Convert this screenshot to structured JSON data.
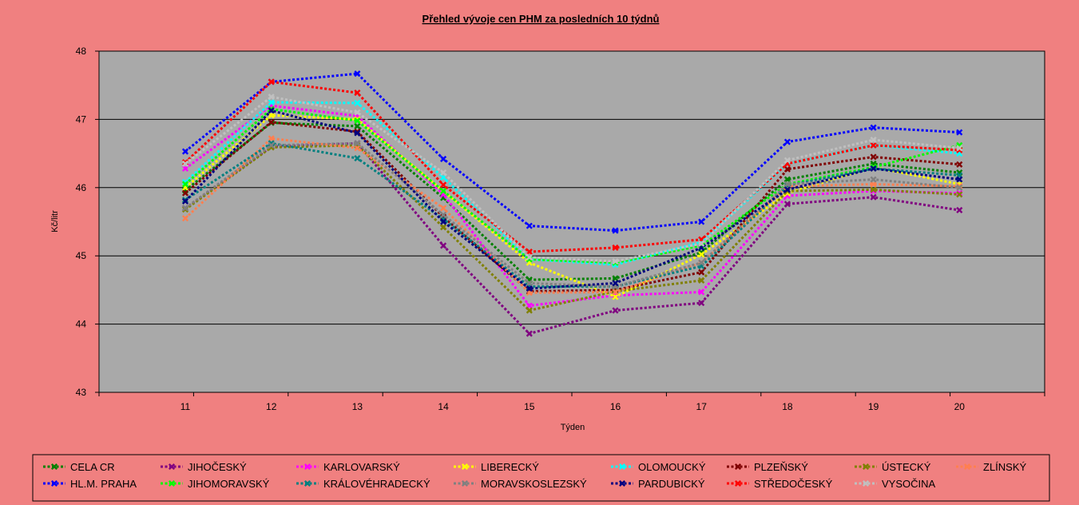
{
  "chart_data": {
    "type": "line",
    "title": "Přehled vývoje cen PHM za posledních 10 týdnů",
    "xlabel": "Týden",
    "ylabel": "Kč/litr",
    "ylim": [
      43,
      48
    ],
    "yticks": [
      "43",
      "44",
      "45",
      "46",
      "47",
      "48"
    ],
    "categories": [
      "11",
      "12",
      "13",
      "14",
      "15",
      "16",
      "17",
      "18",
      "19",
      "20"
    ],
    "grid": true,
    "legend_position": "bottom",
    "series": [
      {
        "name": "CELA CR",
        "color": "#008000",
        "values": [
          45.96,
          46.95,
          46.9,
          45.85,
          44.65,
          44.67,
          45.05,
          46.12,
          46.35,
          46.22
        ]
      },
      {
        "name": "JIHOČESKÝ",
        "color": "#800080",
        "values": [
          45.7,
          46.6,
          46.65,
          45.15,
          43.86,
          44.2,
          44.31,
          45.76,
          45.86,
          45.67
        ]
      },
      {
        "name": "KARLOVARSKÝ",
        "color": "#ff00ff",
        "values": [
          46.28,
          47.2,
          47.05,
          45.9,
          44.27,
          44.42,
          44.47,
          45.88,
          45.95,
          45.92
        ]
      },
      {
        "name": "LIBERECKÝ",
        "color": "#ffff00",
        "values": [
          46.0,
          47.06,
          47.0,
          45.95,
          44.9,
          44.4,
          45.02,
          45.92,
          46.3,
          46.05
        ]
      },
      {
        "name": "OLOMOUCKÝ",
        "color": "#00ffff",
        "values": [
          46.08,
          47.25,
          47.24,
          46.15,
          44.95,
          44.87,
          45.2,
          46.35,
          46.62,
          46.5
        ]
      },
      {
        "name": "PLZEŇSKÝ",
        "color": "#800000",
        "values": [
          45.92,
          46.96,
          46.82,
          45.57,
          44.48,
          44.5,
          44.76,
          46.27,
          46.45,
          46.34
        ]
      },
      {
        "name": "ÚSTECKÝ",
        "color": "#808000",
        "values": [
          45.68,
          46.59,
          46.62,
          45.42,
          44.2,
          44.48,
          44.64,
          45.95,
          45.97,
          45.9
        ]
      },
      {
        "name": "ZLÍNSKÝ",
        "color": "#ff7f50",
        "values": [
          45.55,
          46.72,
          46.58,
          45.7,
          44.46,
          44.47,
          44.9,
          46.02,
          46.05,
          46.02
        ]
      },
      {
        "name": "HL.M. PRAHA",
        "color": "#0000ff",
        "values": [
          46.53,
          47.55,
          47.67,
          46.42,
          45.44,
          45.37,
          45.5,
          46.67,
          46.88,
          46.81
        ]
      },
      {
        "name": "JIHOMORAVSKÝ",
        "color": "#00ff00",
        "values": [
          46.05,
          47.15,
          46.98,
          45.95,
          44.95,
          44.9,
          45.15,
          46.05,
          46.3,
          46.62
        ]
      },
      {
        "name": "KRÁLOVÉHRADECKÝ",
        "color": "#008080",
        "values": [
          45.82,
          46.65,
          46.43,
          45.54,
          44.55,
          44.55,
          44.85,
          46.03,
          46.28,
          46.18
        ]
      },
      {
        "name": "MORAVSKOSLEZSKÝ",
        "color": "#808080",
        "values": [
          45.7,
          46.62,
          46.65,
          45.6,
          44.6,
          44.55,
          44.9,
          46.05,
          46.12,
          46.0
        ]
      },
      {
        "name": "PARDUBICKÝ",
        "color": "#000080",
        "values": [
          45.8,
          47.13,
          46.8,
          45.5,
          44.52,
          44.6,
          45.12,
          45.97,
          46.28,
          46.12
        ]
      },
      {
        "name": "STŘEDOČESKÝ",
        "color": "#ff0000",
        "values": [
          46.37,
          47.55,
          47.39,
          46.04,
          45.06,
          45.12,
          45.24,
          46.35,
          46.62,
          46.55
        ]
      },
      {
        "name": "VYSOČINA",
        "color": "#c0c0c0",
        "values": [
          46.35,
          47.33,
          47.1,
          46.22,
          44.98,
          44.92,
          45.18,
          46.4,
          46.7,
          46.58
        ]
      }
    ]
  }
}
